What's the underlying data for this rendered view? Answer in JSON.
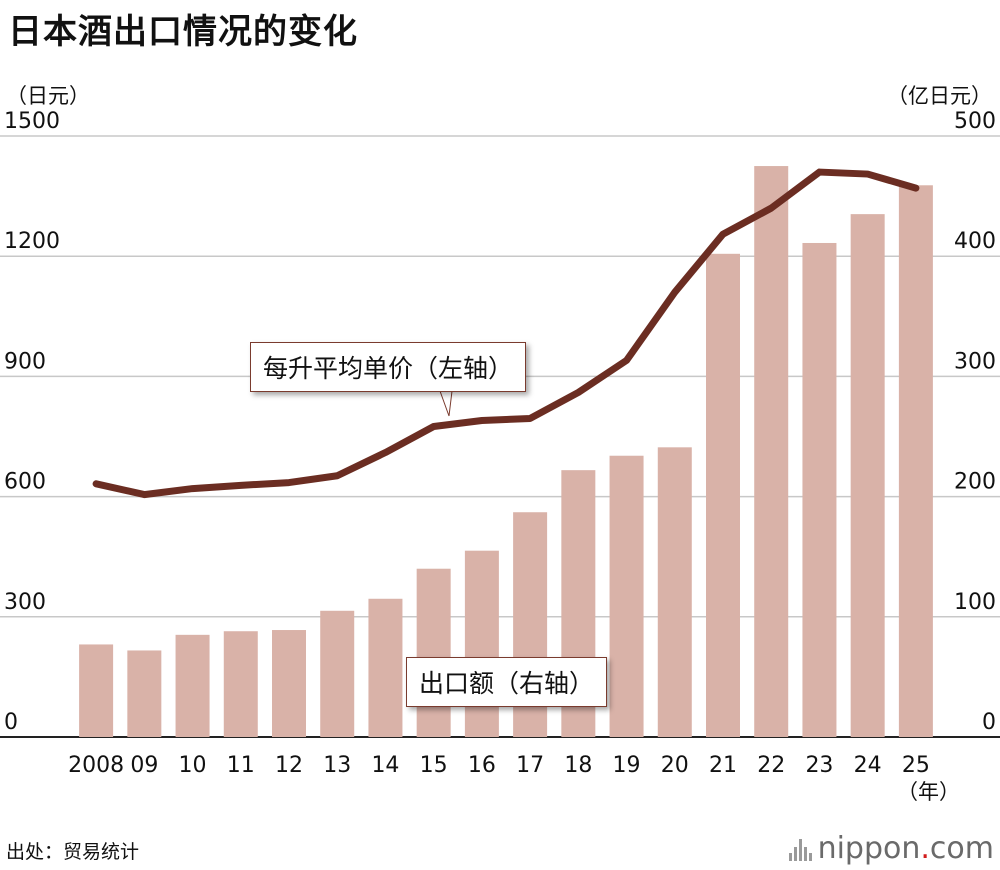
{
  "title": "日本酒出口情况的变化",
  "left_unit": "（日元）",
  "right_unit": "（亿日元）",
  "year_unit": "（年）",
  "source": "出处：贸易统计",
  "brand": {
    "name": "nippon",
    "dot": ".",
    "tld": "com"
  },
  "colors": {
    "bar": "#d9b2a8",
    "line": "#6b2d22",
    "grid": "#c8c8c8",
    "axis": "#222222"
  },
  "chart_data": {
    "type": "bar",
    "title": "日本酒出口情况的变化",
    "categories": [
      "2008",
      "09",
      "10",
      "11",
      "12",
      "13",
      "14",
      "15",
      "16",
      "17",
      "18",
      "19",
      "20",
      "21",
      "22",
      "23",
      "24",
      "25"
    ],
    "left_axis": {
      "label": "（日元）",
      "range": [
        0,
        1500
      ],
      "ticks": [
        "0",
        "300",
        "600",
        "900",
        "1200",
        "1500"
      ],
      "tick_values": [
        0,
        300,
        600,
        900,
        1200,
        1500
      ]
    },
    "right_axis": {
      "label": "（亿日元）",
      "range": [
        0,
        500
      ],
      "ticks": [
        "0",
        "100",
        "200",
        "300",
        "400",
        "500"
      ],
      "tick_values": [
        0,
        100,
        200,
        300,
        400,
        500
      ]
    },
    "series": [
      {
        "name": "出口额（右轴）",
        "type": "bar",
        "axis": "right",
        "values": [
          77,
          72,
          85,
          88,
          89,
          105,
          115,
          140,
          155,
          187,
          222,
          234,
          241,
          402,
          475,
          411,
          435,
          459
        ]
      },
      {
        "name": "每升平均单价（左轴）",
        "type": "line",
        "axis": "left",
        "values": [
          632,
          605,
          620,
          628,
          635,
          652,
          710,
          775,
          790,
          795,
          860,
          940,
          1110,
          1255,
          1320,
          1410,
          1405,
          1370
        ]
      }
    ],
    "grid": true
  }
}
